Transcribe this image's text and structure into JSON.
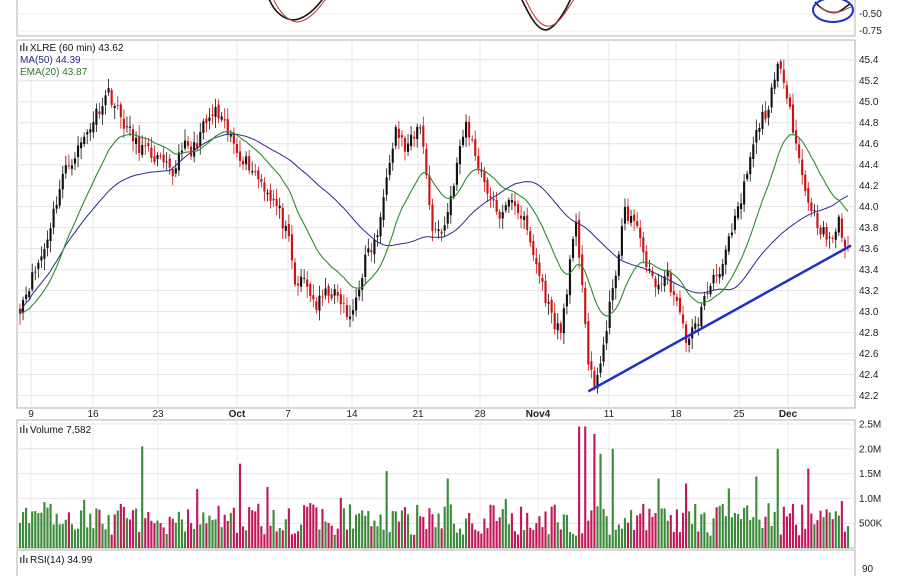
{
  "chart_data": [
    {
      "panel": "top-indicator",
      "type": "line",
      "y_ticks": [
        "-0.50",
        "-0.75"
      ],
      "annotation": "blue-circle-highlight"
    },
    {
      "panel": "price",
      "type": "candlestick",
      "legend": {
        "symbol": "XLRE (60 min) 43.62",
        "ma50": "MA(50) 44.39",
        "ema20": "EMA(20) 43.87"
      },
      "x_ticks": [
        "9",
        "16",
        "23",
        "Oct",
        "7",
        "14",
        "21",
        "28",
        "Nov4",
        "11",
        "18",
        "25",
        "Dec"
      ],
      "y_ticks": [
        "45.4",
        "45.2",
        "45.0",
        "44.8",
        "44.6",
        "44.4",
        "44.2",
        "44.0",
        "43.8",
        "43.6",
        "43.4",
        "43.2",
        "43.0",
        "42.8",
        "42.6",
        "42.4",
        "42.2"
      ],
      "ylim": [
        42.12,
        45.55
      ],
      "colors": {
        "up": "#111111",
        "down": "#cc1111",
        "ma50": "#2a2a8a",
        "ema20": "#2e8b2e",
        "trendline": "#1f2fc8"
      },
      "close_path": [
        [
          0,
          43.05
        ],
        [
          8,
          43.6
        ],
        [
          14,
          44.3
        ],
        [
          20,
          44.6
        ],
        [
          26,
          44.95
        ],
        [
          29,
          45.1
        ],
        [
          33,
          44.85
        ],
        [
          38,
          44.6
        ],
        [
          45,
          44.45
        ],
        [
          50,
          44.3
        ],
        [
          53,
          44.6
        ],
        [
          56,
          44.5
        ],
        [
          60,
          44.75
        ],
        [
          64,
          44.9
        ],
        [
          68,
          44.7
        ],
        [
          72,
          44.5
        ],
        [
          75,
          44.4
        ],
        [
          80,
          44.2
        ],
        [
          85,
          43.95
        ],
        [
          88,
          43.65
        ],
        [
          90,
          43.25
        ],
        [
          93,
          43.3
        ],
        [
          97,
          43.05
        ],
        [
          101,
          43.2
        ],
        [
          105,
          43.1
        ],
        [
          108,
          42.9
        ],
        [
          111,
          43.25
        ],
        [
          113,
          43.5
        ],
        [
          116,
          43.65
        ],
        [
          118,
          43.85
        ],
        [
          120,
          44.35
        ],
        [
          123,
          44.75
        ],
        [
          126,
          44.55
        ],
        [
          129,
          44.65
        ],
        [
          131,
          44.8
        ],
        [
          133,
          44.3
        ],
        [
          135,
          43.8
        ],
        [
          138,
          43.75
        ],
        [
          140,
          43.95
        ],
        [
          143,
          44.4
        ],
        [
          146,
          44.8
        ],
        [
          149,
          44.5
        ],
        [
          152,
          44.25
        ],
        [
          155,
          44.0
        ],
        [
          158,
          43.9
        ],
        [
          161,
          44.1
        ],
        [
          165,
          43.85
        ],
        [
          168,
          43.55
        ],
        [
          171,
          43.25
        ],
        [
          174,
          42.95
        ],
        [
          177,
          42.8
        ],
        [
          180,
          43.45
        ],
        [
          182,
          43.8
        ],
        [
          184,
          43.3
        ],
        [
          186,
          42.5
        ],
        [
          188,
          42.25
        ],
        [
          190,
          42.55
        ],
        [
          192,
          42.8
        ],
        [
          194,
          43.25
        ],
        [
          196,
          43.55
        ],
        [
          198,
          43.95
        ],
        [
          200,
          43.9
        ],
        [
          203,
          43.7
        ],
        [
          206,
          43.35
        ],
        [
          209,
          43.25
        ],
        [
          212,
          43.35
        ],
        [
          215,
          43.05
        ],
        [
          218,
          42.75
        ],
        [
          221,
          42.85
        ],
        [
          224,
          43.1
        ],
        [
          227,
          43.35
        ],
        [
          230,
          43.45
        ],
        [
          233,
          43.75
        ],
        [
          236,
          44.05
        ],
        [
          239,
          44.45
        ],
        [
          242,
          44.8
        ],
        [
          245,
          44.95
        ],
        [
          248,
          45.3
        ],
        [
          250,
          45.25
        ],
        [
          252,
          44.95
        ],
        [
          254,
          44.6
        ],
        [
          257,
          44.15
        ],
        [
          261,
          43.85
        ],
        [
          265,
          43.65
        ],
        [
          268,
          43.85
        ],
        [
          270,
          43.62
        ]
      ],
      "trendline": {
        "x": [
          186,
          272
        ],
        "y": [
          42.24,
          43.63
        ]
      }
    },
    {
      "panel": "volume",
      "type": "bar",
      "legend": "Volume 7,582",
      "y_ticks": [
        "2.5M",
        "2.0M",
        "1.5M",
        "1.0M",
        "500K"
      ],
      "ylim": [
        0,
        2.5
      ]
    },
    {
      "panel": "rsi",
      "type": "line",
      "legend": "RSI(14) 34.99",
      "y_ticks": [
        "90"
      ]
    }
  ]
}
